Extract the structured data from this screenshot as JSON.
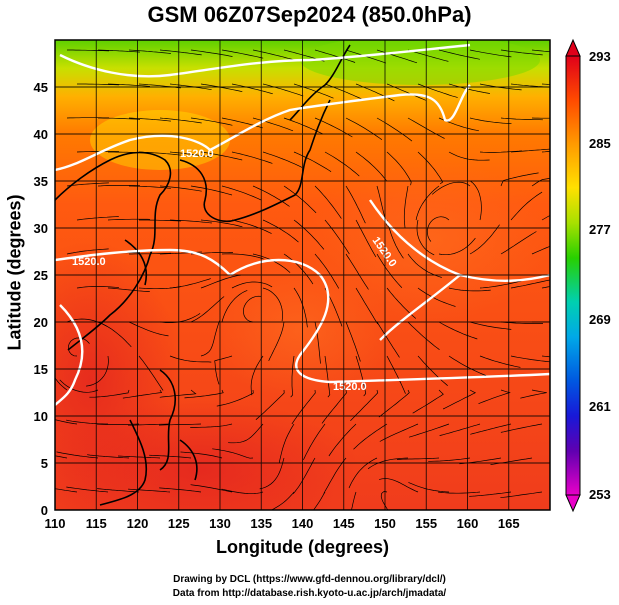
{
  "title": "GSM 06Z07Sep2024 (850.0hPa)",
  "axes": {
    "xlabel": "Longitude (degrees)",
    "ylabel": "Latitude  (degrees)",
    "x_ticks": [
      "110",
      "115",
      "120",
      "125",
      "130",
      "135",
      "140",
      "145",
      "150",
      "155",
      "160",
      "165"
    ],
    "y_ticks": [
      "0",
      "5",
      "10",
      "15",
      "20",
      "25",
      "30",
      "35",
      "40",
      "45"
    ]
  },
  "colorbar": {
    "ticks": [
      "293",
      "285",
      "277",
      "269",
      "261",
      "253"
    ],
    "colors": [
      "#d00020",
      "#ff5000",
      "#ff9a00",
      "#ffd600",
      "#9be000",
      "#2fd400",
      "#00d2a0",
      "#00a8e6",
      "#0060e0",
      "#1a1ae0",
      "#4a00b0",
      "#a000c0",
      "#e000c0"
    ]
  },
  "contours": {
    "label": "1520.0",
    "label_south": "1520.0",
    "label_west": "1520.0",
    "label_center": "1520.0"
  },
  "credits": {
    "line1": "Drawing by DCL (https://www.gfd-dennou.org/library/dcl/)",
    "line2": "Data from http://database.rish.kyoto-u.ac.jp/arch/jmadata/"
  },
  "map_data": {
    "domain": {
      "lon": [
        110,
        170
      ],
      "lat": [
        0,
        50
      ]
    },
    "variable": "temperature (K) with wind streamlines and geopotential height contours",
    "features": [
      "cyclone near 136E 24N",
      "anticyclone near 156E 30N",
      "cooler air north of 40N"
    ]
  }
}
